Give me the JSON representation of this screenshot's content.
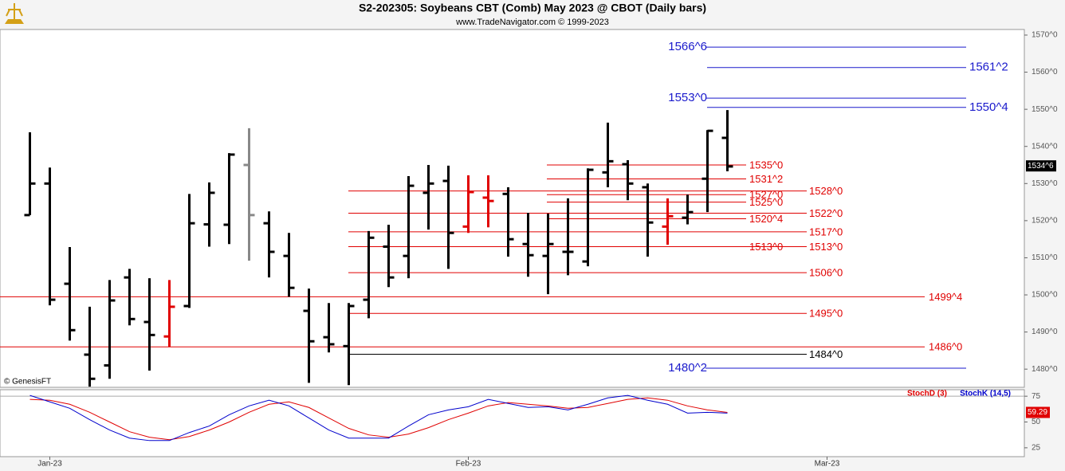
{
  "chart_data": [
    {
      "type": "ohlc",
      "title": "S2-202305:  Soybeans CBT (Comb) May 2023 @ CBOT  (Daily bars)",
      "subtitle": "www.TradeNavigator.com © 1999-2023",
      "watermark": "© GenesisFT",
      "open": [
        1521.5,
        1530,
        1503,
        1483.9,
        1481,
        1504.7,
        1492.7,
        1488.8,
        1497,
        1519,
        1518.9,
        1535,
        1519.3,
        1510.5,
        1495.7,
        1488.6,
        1486.2,
        1498.7,
        1513,
        1510.5,
        1527.5,
        1530.7,
        1518.4,
        1526.2,
        1527.2,
        1513.7,
        1510.5,
        1511.6,
        1509,
        1533,
        1535.2,
        1529,
        1518.4,
        1520.8,
        1531.3,
        1542.3
      ],
      "high": [
        1543.8,
        1534.3,
        1512.9,
        1496.8,
        1504,
        1507,
        1504.5,
        1504,
        1527.2,
        1530.3,
        1538.2,
        1544.9,
        1522.5,
        1516.7,
        1501.7,
        1497.8,
        1497.8,
        1517.2,
        1518.9,
        1532,
        1535,
        1534.8,
        1532.2,
        1532.2,
        1529,
        1522.1,
        1521.9,
        1526,
        1534.1,
        1546.4,
        1536.3,
        1530,
        1526,
        1527,
        1544.4,
        1549.8
      ],
      "low": [
        1521.5,
        1497.2,
        1487.7,
        1475.3,
        1477.4,
        1491.8,
        1479.6,
        1486,
        1496.5,
        1513,
        1513.7,
        1509.2,
        1504.7,
        1499.5,
        1476.3,
        1484.5,
        1475.7,
        1493.7,
        1502.1,
        1504.5,
        1517.6,
        1507,
        1516.7,
        1518.2,
        1510.3,
        1504.9,
        1500.2,
        1505.3,
        1507.7,
        1529,
        1525.5,
        1510.3,
        1513.5,
        1519,
        1522.3,
        1533.3
      ],
      "close": [
        1530,
        1498.7,
        1490.5,
        1477.4,
        1498.5,
        1493.5,
        1489.2,
        1496.8,
        1519.3,
        1527.5,
        1537.8,
        1521.5,
        1511.6,
        1501.9,
        1487.5,
        1486.7,
        1497,
        1515.4,
        1504.7,
        1529.4,
        1530,
        1516.7,
        1527.7,
        1525.3,
        1515,
        1510.7,
        1513.7,
        1511.6,
        1533.7,
        1536,
        1530,
        1519.5,
        1521.2,
        1522.3,
        1544.2,
        1534.6
      ],
      "colors": [
        "#000000",
        "#000000",
        "#000000",
        "#000000",
        "#000000",
        "#000000",
        "#000000",
        "#e00000",
        "#000000",
        "#000000",
        "#000000",
        "#888888",
        "#000000",
        "#000000",
        "#000000",
        "#000000",
        "#000000",
        "#000000",
        "#000000",
        "#000000",
        "#000000",
        "#000000",
        "#e00000",
        "#e00000",
        "#000000",
        "#000000",
        "#000000",
        "#000000",
        "#000000",
        "#000000",
        "#000000",
        "#000000",
        "#e00000",
        "#000000",
        "#000000",
        "#000000"
      ],
      "ylim": [
        1475.1,
        1571.5
      ],
      "yticks": [
        {
          "value": 1480,
          "label": "1480^0"
        },
        {
          "value": 1490,
          "label": "1490^0"
        },
        {
          "value": 1500,
          "label": "1500^0"
        },
        {
          "value": 1510,
          "label": "1510^0"
        },
        {
          "value": 1520,
          "label": "1520^0"
        },
        {
          "value": 1530,
          "label": "1530^0"
        },
        {
          "value": 1540,
          "label": "1540^0"
        },
        {
          "value": 1550,
          "label": "1550^0"
        },
        {
          "value": 1560,
          "label": "1560^0"
        },
        {
          "value": 1570,
          "label": "1570^0"
        }
      ],
      "xlim": [
        -1.5,
        49.9
      ],
      "xticks": [
        {
          "value": 1,
          "label": "Jan-23"
        },
        {
          "value": 22,
          "label": "Feb-23"
        },
        {
          "value": 40,
          "label": "Mar-23"
        }
      ],
      "last": {
        "value": 1534.75,
        "label": "1534^6"
      },
      "levels": [
        {
          "label": "1566^6",
          "value": 1566.75,
          "color": "#1a1acc",
          "style": "target-left"
        },
        {
          "label": "1561^2",
          "value": 1561.25,
          "color": "#1a1acc",
          "style": "target-right"
        },
        {
          "label": "1553^0",
          "value": 1553,
          "color": "#1a1acc",
          "style": "target-left"
        },
        {
          "label": "1550^4",
          "value": 1550.5,
          "color": "#1a1acc",
          "style": "target-right"
        },
        {
          "label": "1535^0",
          "value": 1535,
          "color": "#e00000",
          "style": "short"
        },
        {
          "label": "1531^2",
          "value": 1531.25,
          "color": "#e00000",
          "style": "short"
        },
        {
          "label": "1528^0",
          "value": 1528,
          "color": "#e00000",
          "style": "mid"
        },
        {
          "label": "1527^0",
          "value": 1527,
          "color": "#e00000",
          "style": "short"
        },
        {
          "label": "1525^0",
          "value": 1525,
          "color": "#e00000",
          "style": "short"
        },
        {
          "label": "1522^0",
          "value": 1522,
          "color": "#e00000",
          "style": "mid"
        },
        {
          "label": "1520^4",
          "value": 1520.5,
          "color": "#e00000",
          "style": "short"
        },
        {
          "label": "1517^0",
          "value": 1517,
          "color": "#e00000",
          "style": "mid"
        },
        {
          "label": "1513^0",
          "value": 1513,
          "color": "#e00000",
          "style": "short"
        },
        {
          "label": "1513^0",
          "value": 1513,
          "color": "#e00000",
          "style": "mid"
        },
        {
          "label": "1506^0",
          "value": 1506,
          "color": "#e00000",
          "style": "mid"
        },
        {
          "label": "1499^4",
          "value": 1499.5,
          "color": "#e00000",
          "style": "long"
        },
        {
          "label": "1495^0",
          "value": 1495,
          "color": "#e00000",
          "style": "mid"
        },
        {
          "label": "1486^0",
          "value": 1486,
          "color": "#e00000",
          "style": "long"
        },
        {
          "label": "1484^0",
          "value": 1484,
          "color": "#000000",
          "style": "mid"
        },
        {
          "label": "1480^2",
          "value": 1480.25,
          "color": "#1a1acc",
          "style": "target-left"
        }
      ]
    },
    {
      "type": "line",
      "series": [
        {
          "name": "StochD (3)",
          "color": "#e00000",
          "values": [
            71.9,
            71.1,
            67.2,
            59.4,
            50,
            40.6,
            35.2,
            32.8,
            35.9,
            42.2,
            50,
            59.4,
            67.2,
            69.5,
            64.1,
            53.9,
            43.8,
            37.5,
            35.2,
            38.3,
            44.5,
            52.3,
            58.6,
            65.6,
            68.8,
            67.2,
            65.6,
            63.3,
            64.1,
            68,
            71.9,
            73.4,
            71.1,
            65.6,
            61.7,
            59.29
          ]
        },
        {
          "name": "StochK (14,5)",
          "color": "#0000cc",
          "values": [
            75.8,
            69.5,
            63.3,
            52.3,
            42.2,
            34.4,
            32,
            32,
            39.8,
            46.1,
            57,
            65.6,
            71.1,
            65.6,
            53.9,
            42.2,
            34.4,
            34.4,
            34.4,
            46.1,
            57,
            61.7,
            64.8,
            71.9,
            68,
            64.1,
            64.8,
            61.7,
            67.2,
            73.4,
            75.8,
            71.1,
            67.2,
            58.6,
            59.4,
            58.6
          ]
        }
      ],
      "ylim": [
        16.4,
        81.3
      ],
      "yticks": [
        25,
        50,
        75
      ]
    }
  ]
}
